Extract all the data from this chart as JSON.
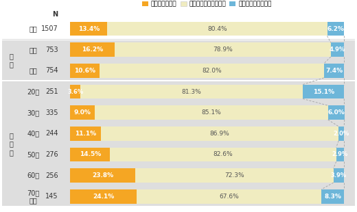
{
  "rows": [
    {
      "label": "全体",
      "n": "1507",
      "v1": 13.4,
      "v2": 80.4,
      "v3": 6.2
    },
    {
      "label": "男性",
      "n": "753",
      "v1": 16.2,
      "v2": 78.9,
      "v3": 4.9
    },
    {
      "label": "女性",
      "n": "754",
      "v1": 10.6,
      "v2": 82.0,
      "v3": 7.4
    },
    {
      "label": "20代",
      "n": "251",
      "v1": 3.6,
      "v2": 81.3,
      "v3": 15.1
    },
    {
      "label": "30代",
      "n": "335",
      "v1": 9.0,
      "v2": 85.1,
      "v3": 6.0
    },
    {
      "label": "40代",
      "n": "244",
      "v1": 11.1,
      "v2": 86.9,
      "v3": 2.0
    },
    {
      "label": "50代",
      "n": "276",
      "v1": 14.5,
      "v2": 82.6,
      "v3": 2.9
    },
    {
      "label": "60代",
      "n": "256",
      "v1": 23.8,
      "v2": 72.3,
      "v3": 3.9
    },
    {
      "label": "70歳\n以上",
      "n": "145",
      "v1": 24.1,
      "v2": 67.6,
      "v3": 8.3
    }
  ],
  "group_info": [
    {
      "text": "性\n別",
      "row_indices": [
        1,
        2
      ]
    },
    {
      "text": "年\n代\n別",
      "row_indices": [
        3,
        4,
        5,
        6,
        7,
        8
      ]
    }
  ],
  "colors": [
    "#F5A623",
    "#F0ECC0",
    "#6DB6D9"
  ],
  "legend_labels": [
    "よく知っている",
    "言葉だけは知っている",
    "言葉も知らなかった"
  ],
  "bar_height": 0.68,
  "bg_color": "#FFFFFF",
  "group_bg_color": "#DEDEDE",
  "text_dark": "#333333",
  "text_light": "#888888",
  "zigzag_color": "#AAAAAA",
  "sep_color": "#CCCCCC"
}
